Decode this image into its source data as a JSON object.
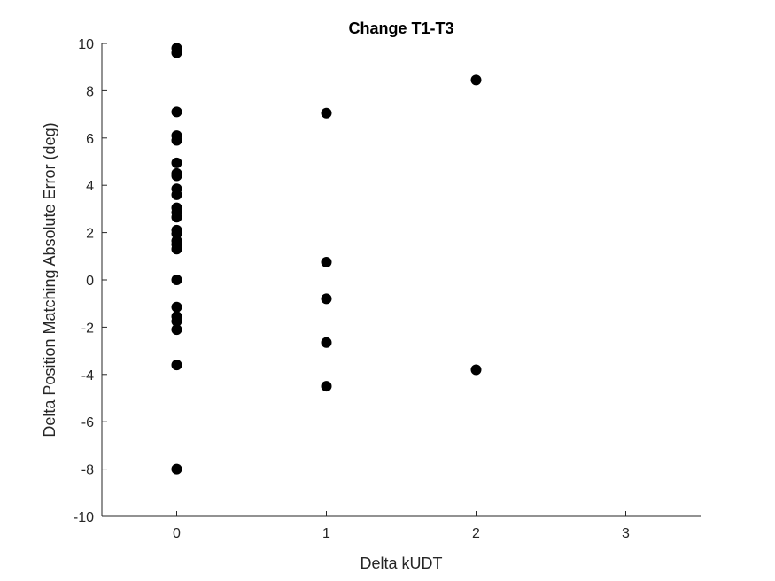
{
  "chart_data": {
    "type": "scatter",
    "title": "Change T1-T3",
    "xlabel": "Delta kUDT",
    "ylabel": "Delta Position Matching Absolute Error (deg)",
    "xlim": [
      -0.5,
      3.5
    ],
    "ylim": [
      -10,
      10
    ],
    "xticks": [
      0,
      1,
      2,
      3
    ],
    "yticks": [
      -10,
      -8,
      -6,
      -4,
      -2,
      0,
      2,
      4,
      6,
      8,
      10
    ],
    "grid": false,
    "marker_color": "#000000",
    "points": [
      {
        "x": 0,
        "y": 9.8
      },
      {
        "x": 0,
        "y": 9.6
      },
      {
        "x": 0,
        "y": 7.1
      },
      {
        "x": 0,
        "y": 6.1
      },
      {
        "x": 0,
        "y": 5.9
      },
      {
        "x": 0,
        "y": 4.95
      },
      {
        "x": 0,
        "y": 4.5
      },
      {
        "x": 0,
        "y": 4.4
      },
      {
        "x": 0,
        "y": 3.85
      },
      {
        "x": 0,
        "y": 3.6
      },
      {
        "x": 0,
        "y": 3.05
      },
      {
        "x": 0,
        "y": 2.85
      },
      {
        "x": 0,
        "y": 2.65
      },
      {
        "x": 0,
        "y": 2.1
      },
      {
        "x": 0,
        "y": 1.95
      },
      {
        "x": 0,
        "y": 1.65
      },
      {
        "x": 0,
        "y": 1.5
      },
      {
        "x": 0,
        "y": 1.3
      },
      {
        "x": 0,
        "y": 0.0
      },
      {
        "x": 0,
        "y": -1.15
      },
      {
        "x": 0,
        "y": -1.55
      },
      {
        "x": 0,
        "y": -1.75
      },
      {
        "x": 0,
        "y": -2.1
      },
      {
        "x": 0,
        "y": -3.6
      },
      {
        "x": 0,
        "y": -8.0
      },
      {
        "x": 1,
        "y": 7.05
      },
      {
        "x": 1,
        "y": 0.75
      },
      {
        "x": 1,
        "y": -0.8
      },
      {
        "x": 1,
        "y": -2.65
      },
      {
        "x": 1,
        "y": -4.5
      },
      {
        "x": 2,
        "y": 8.45
      },
      {
        "x": 2,
        "y": -3.8
      }
    ]
  }
}
